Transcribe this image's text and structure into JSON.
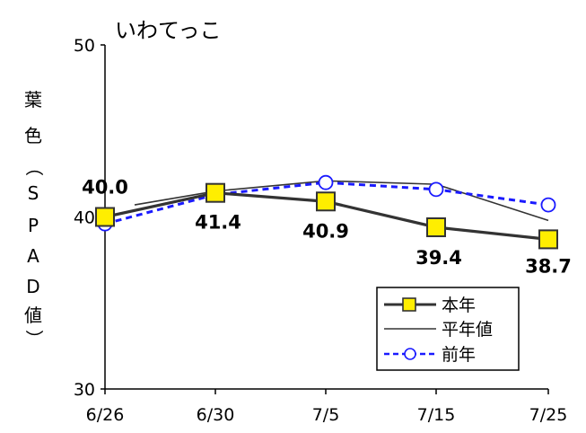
{
  "chart_data": {
    "type": "line",
    "title": "いわてっこ",
    "ylabel": "葉色（SPAD値）",
    "xlabel": "",
    "categories": [
      "6/26",
      "6/30",
      "7/5",
      "7/15",
      "7/25"
    ],
    "ylim": [
      30,
      50
    ],
    "y_ticks": [
      30,
      40,
      50
    ],
    "grid": false,
    "legend_position": "bottom-right",
    "series": [
      {
        "name": "本年",
        "values": [
          40.0,
          41.4,
          40.9,
          39.4,
          38.7
        ],
        "color": "#333333",
        "marker": "square-yellow",
        "line": "solid",
        "data_labels": [
          "40.0",
          "41.4",
          "40.9",
          "39.4",
          "38.7"
        ]
      },
      {
        "name": "平年値",
        "values": [
          40.7,
          41.5,
          42.1,
          41.9,
          39.8
        ],
        "color": "#333333",
        "marker": "none",
        "line": "thin-solid"
      },
      {
        "name": "前年",
        "values": [
          39.6,
          41.3,
          42.0,
          41.6,
          40.7
        ],
        "color": "#1a1aff",
        "marker": "open-circle",
        "line": "dashed"
      }
    ]
  }
}
